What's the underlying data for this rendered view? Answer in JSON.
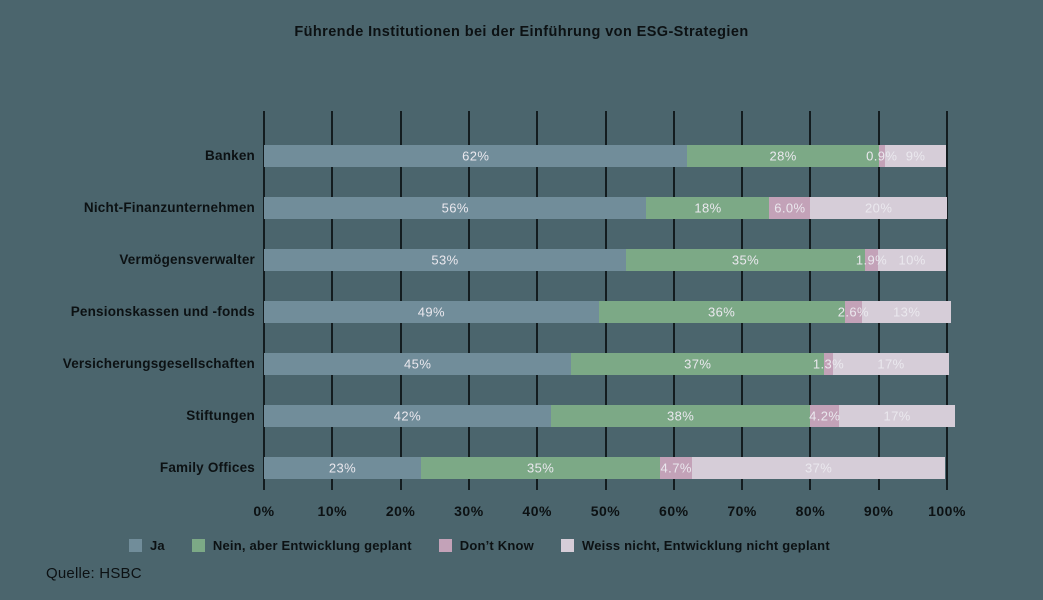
{
  "source": "Quelle: HSBC",
  "colors": {
    "background": "#4b656d",
    "grid": "#131c1f",
    "text": "#0c1113",
    "bar_label": "#eae8ee"
  },
  "chart_data": {
    "type": "bar",
    "orientation": "horizontal",
    "stacked": true,
    "title": "Führende Institutionen bei der Einführung von ESG-Strategien",
    "categories": [
      "Banken",
      "Nicht-Finanzunternehmen",
      "Vermögensverwalter",
      "Pensionskassen und -fonds",
      "Versicherungsgesellschaften",
      "Stiftungen",
      "Family Offices"
    ],
    "series": [
      {
        "name": "Ja",
        "color": "#718d9a",
        "values": [
          62,
          56,
          53,
          49,
          45,
          42,
          23
        ],
        "labels": [
          "62%",
          "56%",
          "53%",
          "49%",
          "45%",
          "42%",
          "23%"
        ]
      },
      {
        "name": "Nein, aber Entwicklung geplant",
        "color": "#7ca986",
        "values": [
          28,
          18,
          35,
          36,
          37,
          38,
          35
        ],
        "labels": [
          "28%",
          "18%",
          "35%",
          "36%",
          "37%",
          "38%",
          "35%"
        ]
      },
      {
        "name": "Don’t Know",
        "color": "#c3a2b8",
        "values": [
          0.9,
          6.0,
          1.9,
          2.6,
          1.3,
          4.2,
          4.7
        ],
        "labels": [
          "0.9%",
          "6.0%",
          "1.9%",
          "2.6%",
          "1.3%",
          "4.2%",
          "4.7%"
        ]
      },
      {
        "name": "Weiss nicht, Entwicklung nicht geplant",
        "color": "#d6cdd8",
        "values": [
          9,
          20,
          10,
          13,
          17,
          17,
          37
        ],
        "labels": [
          "9%",
          "20%",
          "10%",
          "13%",
          "17%",
          "17%",
          "37%"
        ]
      }
    ],
    "x_ticks": [
      "0%",
      "10%",
      "20%",
      "30%",
      "40%",
      "50%",
      "60%",
      "70%",
      "80%",
      "90%",
      "100%"
    ],
    "xlim": [
      0,
      100
    ],
    "grid": "vertical",
    "legend_position": "bottom"
  }
}
